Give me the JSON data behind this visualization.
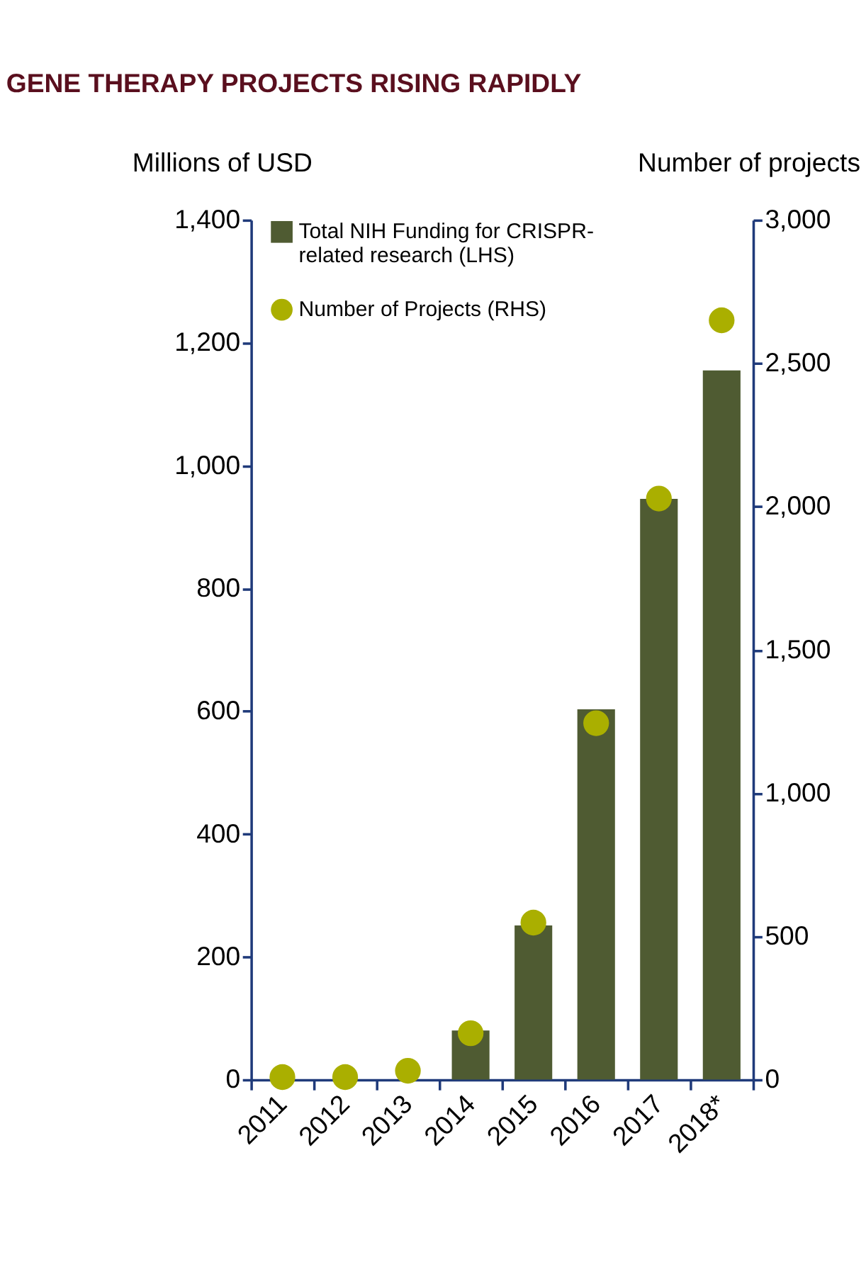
{
  "chart_data": {
    "type": "bar",
    "title": "GENE THERAPY PROJECTS RISING RAPIDLY",
    "ylabel": "Millions of USD",
    "y2label": "Number of projects",
    "categories": [
      "2011",
      "2012",
      "2013",
      "2014",
      "2015",
      "2016",
      "2017",
      "2018*"
    ],
    "series": [
      {
        "name": "Total NIH Funding for CRISPR-related research (LHS)",
        "color": "#4f5b32",
        "values": [
          0,
          0,
          0,
          80,
          251,
          603,
          946,
          1155
        ]
      },
      {
        "name": "Number of Projects (RHS)",
        "type": "scatter",
        "axis": "y2",
        "color": "#aaaf00",
        "marker": "circle",
        "values": [
          9,
          9,
          31,
          162,
          548,
          1244,
          2028,
          2650
        ]
      }
    ],
    "ylim": [
      0,
      1400
    ],
    "yticks": [
      0,
      200,
      400,
      600,
      800,
      {
        "value": 1000,
        "label": "1,000"
      },
      {
        "value": 1200,
        "label": "1,200"
      },
      {
        "value": 1400,
        "label": "1,400"
      }
    ],
    "y2lim": [
      0,
      3000
    ],
    "y2ticks": [
      0,
      500,
      {
        "value": 1000,
        "label": "1,000"
      },
      {
        "value": 1500,
        "label": "1,500"
      },
      {
        "value": 2000,
        "label": "2,000"
      },
      {
        "value": 2500,
        "label": "2,500"
      },
      {
        "value": 3000,
        "label": "3,000"
      }
    ],
    "grid": false,
    "legend": "top left"
  }
}
